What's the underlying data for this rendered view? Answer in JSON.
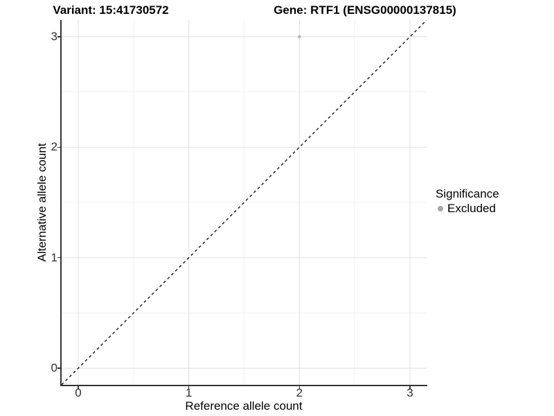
{
  "titles": {
    "variant": "Variant: 15:41730572",
    "gene": "Gene: RTF1 (ENSG00000137815)"
  },
  "axes": {
    "x_title": "Reference allele count",
    "y_title": "Alternative allele count",
    "x_tick_labels": [
      "0",
      "1",
      "2",
      "3"
    ],
    "y_tick_labels": [
      "0",
      "1",
      "2",
      "3"
    ]
  },
  "legend": {
    "title": "Significance",
    "items": [
      {
        "label": "Excluded",
        "color": "#a6a6a6"
      }
    ]
  },
  "colors": {
    "point": "#b4b4b4",
    "axis_line": "#333333",
    "grid_major": "#e4e4e4",
    "grid_minor": "#f1f1f1",
    "reference_line": "#000000"
  },
  "chart_data": {
    "type": "scatter",
    "title_left": "Variant: 15:41730572",
    "title_right": "Gene: RTF1 (ENSG00000137815)",
    "xlabel": "Reference allele count",
    "ylabel": "Alternative allele count",
    "xlim": [
      -0.15,
      3.15
    ],
    "ylim": [
      -0.15,
      3.15
    ],
    "x_ticks": [
      0,
      1,
      2,
      3
    ],
    "y_ticks": [
      0,
      1,
      2,
      3
    ],
    "x_minor_ticks": [
      0.5,
      1.5,
      2.5
    ],
    "y_minor_ticks": [
      0.5,
      1.5,
      2.5
    ],
    "grid": true,
    "legend_position": "right",
    "legend_title": "Significance",
    "series": [
      {
        "name": "Excluded",
        "color": "#b4b4b4",
        "points": [
          {
            "x": 2,
            "y": 3
          }
        ]
      }
    ],
    "reference_line": {
      "slope": 1,
      "intercept": 0,
      "style": "dashed",
      "color": "#000000"
    }
  }
}
